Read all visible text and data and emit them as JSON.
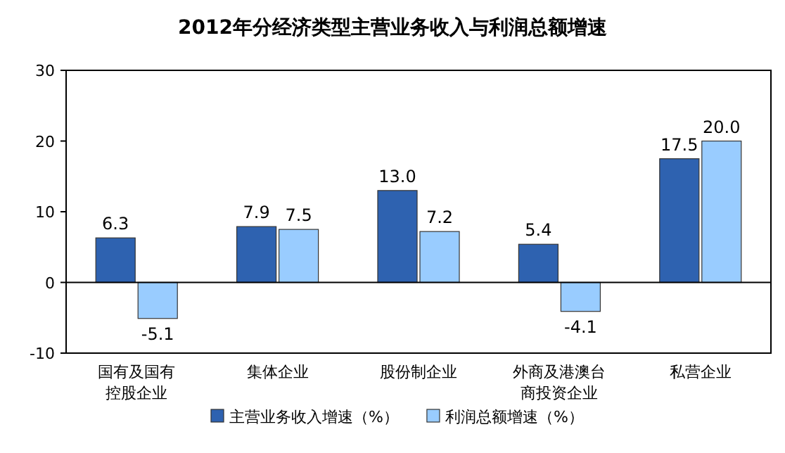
{
  "chart_data": {
    "type": "bar",
    "title": "2012年分经济类型主营业务收入与利润总额增速",
    "categories": [
      "国有及国有控股企业",
      "集体企业",
      "股份制企业",
      "外商及港澳台商投资企业",
      "私营企业"
    ],
    "series": [
      {
        "name": "主营业务收入增速（%）",
        "color": "#2e62b0",
        "values": [
          6.3,
          7.9,
          13.0,
          5.4,
          17.5
        ],
        "value_labels": [
          "6.3",
          "7.9",
          "13.0",
          "5.4",
          "17.5"
        ]
      },
      {
        "name": "利润总额增速（%）",
        "color": "#99ccff",
        "values": [
          -5.1,
          7.5,
          7.2,
          -4.1,
          20.0
        ],
        "value_labels": [
          "-5.1",
          "7.5",
          "7.2",
          "-4.1",
          "20.0"
        ]
      }
    ],
    "ylim": [
      -10,
      30
    ],
    "yticks": [
      -10,
      0,
      10,
      20,
      30
    ],
    "legend": "bottom"
  }
}
